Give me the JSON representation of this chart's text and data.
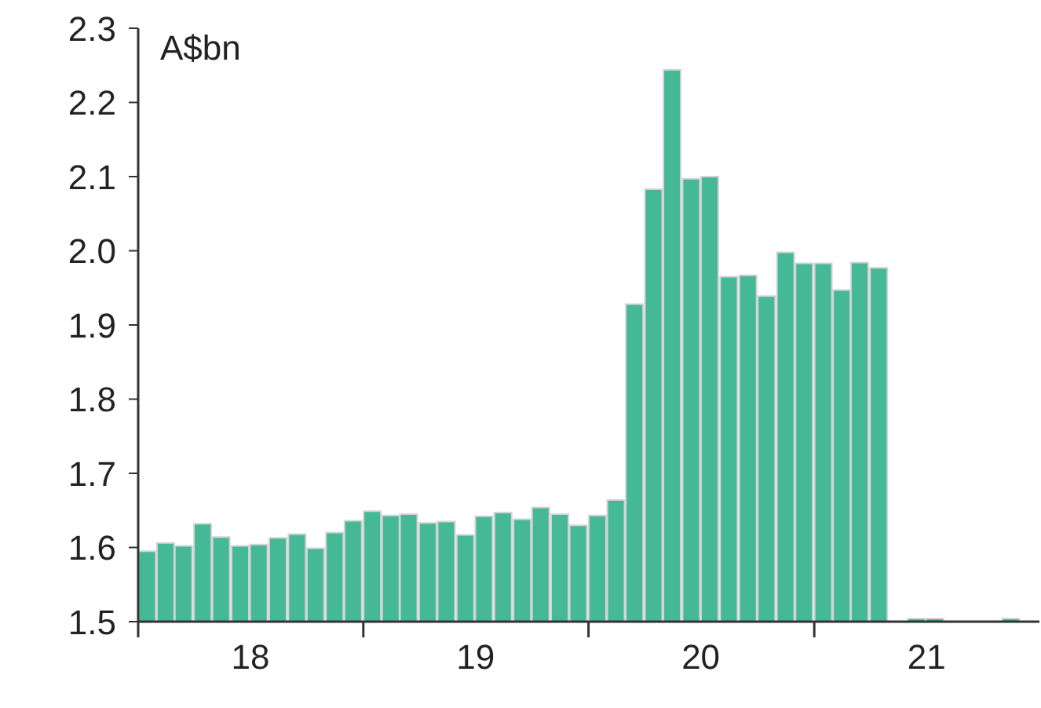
{
  "chart_data": {
    "type": "bar",
    "ylabel": "A$bn",
    "color": "#45b995",
    "x": [
      "2018-01-16",
      "2018-02-15",
      "2018-03-16",
      "2018-04-16",
      "2018-05-16",
      "2018-06-16",
      "2018-07-16",
      "2018-08-16",
      "2018-09-16",
      "2018-10-16",
      "2018-11-16",
      "2018-12-16",
      "2019-01-16",
      "2019-02-15",
      "2019-03-16",
      "2019-04-16",
      "2019-05-16",
      "2019-06-16",
      "2019-07-16",
      "2019-08-16",
      "2019-09-16",
      "2019-10-16",
      "2019-11-16",
      "2019-12-16",
      "2020-01-16",
      "2020-02-15",
      "2020-03-16",
      "2020-04-16",
      "2020-05-16",
      "2020-06-16",
      "2020-07-16",
      "2020-08-16",
      "2020-09-16",
      "2020-10-16",
      "2020-11-16",
      "2020-12-16",
      "2021-01-16",
      "2021-02-15",
      "2021-03-16",
      "2021-04-16",
      "2021-06-16",
      "2021-07-16",
      "2021-11-16"
    ],
    "values": [
      1.595,
      1.606,
      1.602,
      1.632,
      1.614,
      1.602,
      1.604,
      1.613,
      1.618,
      1.599,
      1.62,
      1.636,
      1.649,
      1.643,
      1.645,
      1.633,
      1.635,
      1.617,
      1.642,
      1.647,
      1.638,
      1.654,
      1.645,
      1.63,
      1.643,
      1.664,
      1.928,
      2.083,
      2.244,
      2.097,
      2.1,
      1.965,
      1.967,
      1.939,
      1.998,
      1.983,
      1.983,
      1.947,
      1.984,
      1.977,
      1.5,
      1.5,
      1.5
    ],
    "xlim": [
      "2018-01-01",
      "2022-01-01"
    ],
    "xticks": [
      {
        "value": "2018-01-01",
        "label": null
      },
      {
        "value": "2018-07-02",
        "label": "18"
      },
      {
        "value": "2019-01-01",
        "label": null
      },
      {
        "value": "2019-07-02",
        "label": "19"
      },
      {
        "value": "2020-01-01",
        "label": null
      },
      {
        "value": "2020-07-01",
        "label": "20"
      },
      {
        "value": "2021-01-01",
        "label": null
      },
      {
        "value": "2021-07-02",
        "label": "21"
      }
    ],
    "ylim": [
      1.5,
      2.3
    ],
    "yticks": [
      1.5,
      1.6,
      1.7,
      1.8,
      1.9,
      {
        "value": 2,
        "label": "2.0"
      },
      2.1,
      2.2,
      2.3
    ],
    "grid": false,
    "legend": false
  }
}
